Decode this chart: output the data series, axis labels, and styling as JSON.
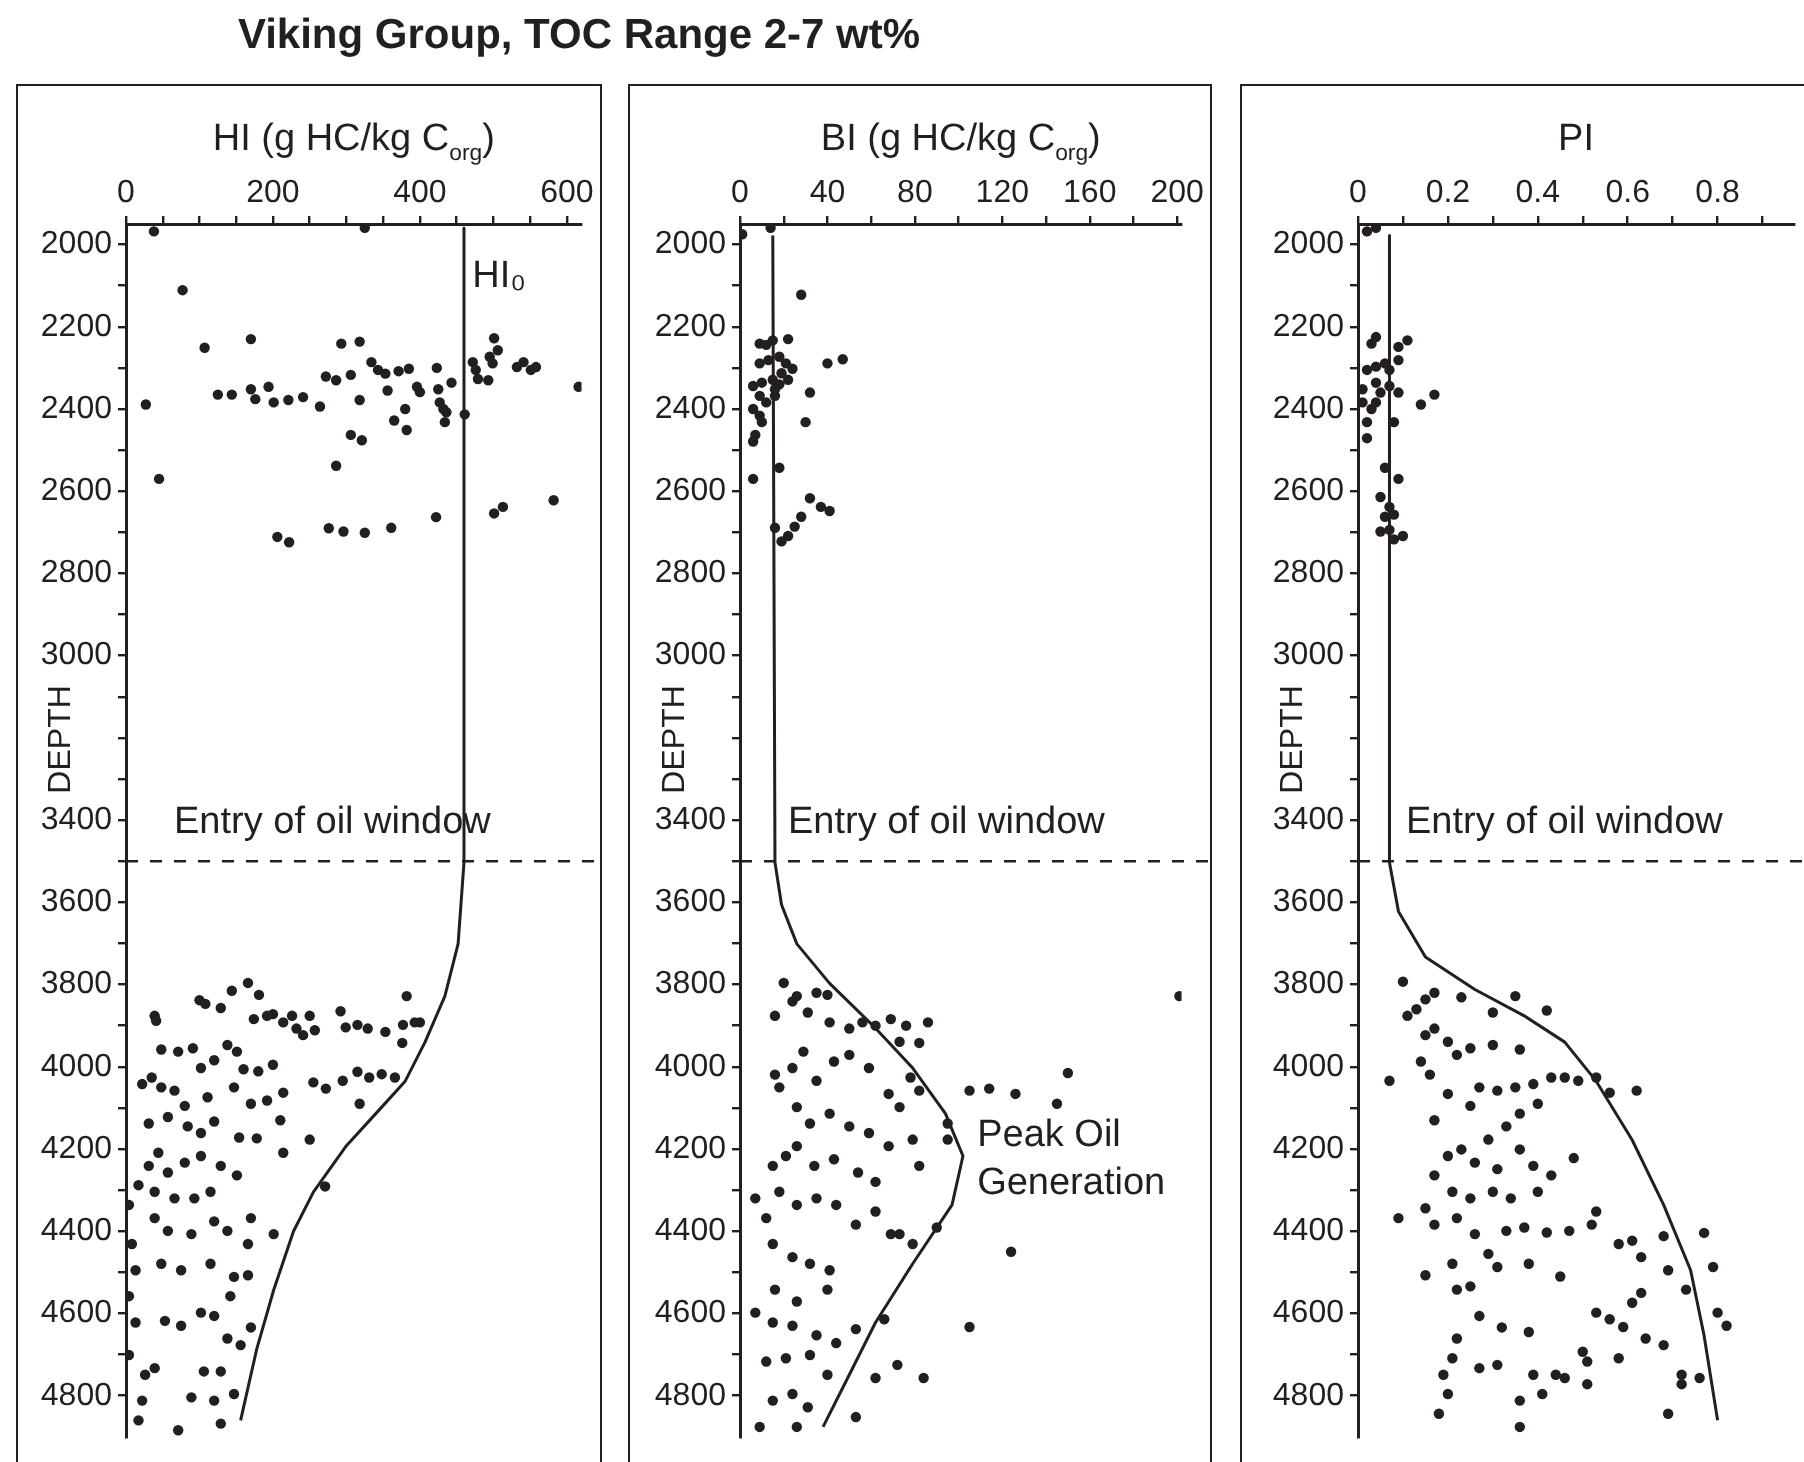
{
  "chart_data": [
    {
      "type": "scatter",
      "title": "Viking Group, TOC Range 2-7 wt%",
      "xlabel": "HI (g HC/kg C$_{org}$)",
      "ylabel": "DEPTH",
      "xlim": [
        0,
        620
      ],
      "ylim": [
        4900,
        1950
      ],
      "grid": false,
      "legend": false,
      "xticks": [
        0,
        {
          "value": 50,
          "label": null
        },
        {
          "value": 100,
          "label": null
        },
        {
          "value": 150,
          "label": null
        },
        200,
        {
          "value": 250,
          "label": null
        },
        {
          "value": 300,
          "label": null
        },
        {
          "value": 350,
          "label": null
        },
        400,
        {
          "value": 450,
          "label": null
        },
        {
          "value": 500,
          "label": null
        },
        {
          "value": 550,
          "label": null
        },
        600
      ],
      "yticks": [
        2000,
        {
          "value": 2100,
          "label": null
        },
        2200,
        {
          "value": 2300,
          "label": null
        },
        2400,
        {
          "value": 2500,
          "label": null
        },
        2600,
        {
          "value": 2700,
          "label": null
        },
        2800,
        {
          "value": 2900,
          "label": null
        },
        3000,
        {
          "value": 3100,
          "label": null
        },
        {
          "value": 3200,
          "label": null
        },
        {
          "value": 3300,
          "label": null
        },
        3400,
        {
          "value": 3500,
          "label": null
        },
        3600,
        {
          "value": 3700,
          "label": null
        },
        3800,
        {
          "value": 3900,
          "label": null
        },
        4000,
        {
          "value": 4100,
          "label": null
        },
        4200,
        {
          "value": 4300,
          "label": null
        },
        4400,
        {
          "value": 4500,
          "label": null
        },
        4600,
        {
          "value": 4700,
          "label": null
        },
        4800
      ],
      "ref_lines": [
        {
          "axis": "y",
          "value": 3500,
          "label": "Entry of oil window",
          "color": "#231f20",
          "line_style": "dashed"
        }
      ],
      "annotations": [
        {
          "text": "HI₀",
          "x": 455,
          "y": 2070
        }
      ],
      "series": [
        {
          "type": "scatter",
          "marker": "circle",
          "color": "#231f20",
          "x": [
            38,
            325,
            77,
            107,
            170,
            293,
            318,
            27,
            125,
            144,
            170,
            176,
            194,
            201,
            221,
            241,
            264,
            272,
            286,
            306,
            318,
            334,
            343,
            353,
            371,
            356,
            385,
            396,
            400,
            380,
            365,
            382,
            423,
            425,
            427,
            432,
            436,
            443,
            434,
            461,
            472,
            476,
            479,
            501,
            506,
            499,
            495,
            493,
            532,
            541,
            551,
            558,
            616,
            45,
            286,
            306,
            321,
            206,
            222,
            276,
            296,
            325,
            361,
            422,
            501,
            513,
            582,
            39,
            41,
            100,
            108,
            129,
            144,
            166,
            181,
            174,
            192,
            200,
            214,
            226,
            232,
            241,
            250,
            257,
            292,
            299,
            315,
            329,
            353,
            377,
            382,
            393,
            400,
            376,
            48,
            71,
            91,
            102,
            120,
            138,
            151,
            160,
            180,
            200,
            22,
            35,
            48,
            66,
            80,
            111,
            147,
            170,
            192,
            214,
            255,
            272,
            295,
            315,
            331,
            348,
            366,
            318,
            210,
            154,
            178,
            214,
            250,
            271,
            31,
            57,
            84,
            102,
            120,
            44,
            31,
            57,
            80,
            102,
            129,
            151,
            17,
            39,
            66,
            93,
            115,
            39,
            57,
            89,
            120,
            138,
            170,
            166,
            201,
            4,
            8,
            13,
            4,
            13,
            48,
            75,
            115,
            147,
            166,
            142,
            102,
            53,
            75,
            120,
            170,
            138,
            156,
            39,
            26,
            129,
            106,
            89,
            120,
            147,
            22,
            17,
            71,
            129,
            4
          ],
          "values": [
            1968,
            1959,
            2111,
            2251,
            2230,
            2241,
            2236,
            2389,
            2365,
            2365,
            2352,
            2376,
            2346,
            2384,
            2378,
            2371,
            2394,
            2321,
            2330,
            2317,
            2378,
            2286,
            2305,
            2314,
            2308,
            2355,
            2302,
            2346,
            2359,
            2400,
            2428,
            2451,
            2300,
            2352,
            2384,
            2400,
            2408,
            2336,
            2432,
            2413,
            2286,
            2305,
            2327,
            2228,
            2257,
            2289,
            2273,
            2330,
            2298,
            2286,
            2305,
            2298,
            2346,
            2570,
            2538,
            2463,
            2476,
            2711,
            2724,
            2690,
            2698,
            2701,
            2689,
            2663,
            2654,
            2638,
            2622,
            3876,
            3888,
            3838,
            3847,
            3857,
            3815,
            3796,
            3825,
            3884,
            3876,
            3872,
            3892,
            3876,
            3907,
            3923,
            3876,
            3911,
            3865,
            3904,
            3898,
            3907,
            3915,
            3898,
            3828,
            3892,
            3892,
            3942,
            3958,
            3963,
            3955,
            4003,
            3984,
            3947,
            3963,
            4006,
            4011,
            3995,
            4042,
            4026,
            4050,
            4058,
            4095,
            4074,
            4050,
            4090,
            4082,
            4063,
            4038,
            4053,
            4034,
            4012,
            4026,
            4018,
            4026,
            4090,
            4130,
            4172,
            4174,
            4209,
            4177,
            4291,
            4138,
            4122,
            4145,
            4161,
            4133,
            4209,
            4241,
            4257,
            4233,
            4217,
            4241,
            4264,
            4288,
            4304,
            4320,
            4320,
            4304,
            4368,
            4399,
            4407,
            4376,
            4399,
            4368,
            4431,
            4407,
            4336,
            4431,
            4495,
            4558,
            4622,
            4479,
            4495,
            4479,
            4511,
            4507,
            4558,
            4598,
            4618,
            4630,
            4606,
            4634,
            4661,
            4677,
            4733,
            4749,
            4741,
            4741,
            4804,
            4812,
            4796,
            4812,
            4860,
            4884,
            4868,
            4701
          ]
        },
        {
          "type": "line",
          "marker": "none",
          "color": "#231f20",
          "x": [
            460,
            460,
            452,
            434,
            407,
            380,
            344,
            300,
            255,
            228,
            201,
            178,
            156
          ],
          "values": [
            1960,
            3503,
            3701,
            3828,
            3940,
            4035,
            4106,
            4192,
            4305,
            4400,
            4543,
            4686,
            4860
          ]
        }
      ]
    },
    {
      "type": "scatter",
      "xlabel": "BI (g HC/kg C$_{org}$)",
      "ylabel": "DEPTH",
      "xlim": [
        0,
        202
      ],
      "ylim": [
        4900,
        1950
      ],
      "grid": false,
      "legend": false,
      "xticks": [
        0,
        {
          "value": 20,
          "label": null
        },
        40,
        {
          "value": 60,
          "label": null
        },
        80,
        {
          "value": 100,
          "label": null
        },
        120,
        {
          "value": 140,
          "label": null
        },
        160,
        {
          "value": 180,
          "label": null
        },
        200
      ],
      "yticks": [
        2000,
        {
          "value": 2100,
          "label": null
        },
        2200,
        {
          "value": 2300,
          "label": null
        },
        2400,
        {
          "value": 2500,
          "label": null
        },
        2600,
        {
          "value": 2700,
          "label": null
        },
        2800,
        {
          "value": 2900,
          "label": null
        },
        3000,
        {
          "value": 3100,
          "label": null
        },
        {
          "value": 3200,
          "label": null
        },
        {
          "value": 3300,
          "label": null
        },
        3400,
        {
          "value": 3500,
          "label": null
        },
        3600,
        {
          "value": 3700,
          "label": null
        },
        3800,
        {
          "value": 3900,
          "label": null
        },
        4000,
        {
          "value": 4100,
          "label": null
        },
        4200,
        {
          "value": 4300,
          "label": null
        },
        4400,
        {
          "value": 4500,
          "label": null
        },
        4600,
        {
          "value": 4700,
          "label": null
        },
        4800
      ],
      "ref_lines": [
        {
          "axis": "y",
          "value": 3500,
          "label": "Entry of oil window",
          "color": "#231f20",
          "line_style": "dashed"
        }
      ],
      "annotations": [
        {
          "text": "Peak Oil Generation",
          "x": 103,
          "y": 4217
        }
      ],
      "series": [
        {
          "type": "scatter",
          "marker": "circle",
          "color": "#231f20",
          "x": [
            1,
            14,
            28,
            9,
            12,
            15,
            22,
            9,
            13,
            18,
            21,
            24,
            19,
            15,
            10,
            6,
            9,
            12,
            16,
            18,
            22,
            6,
            9,
            10,
            7,
            6,
            16,
            32,
            30,
            40,
            47,
            6,
            18,
            32,
            37,
            41,
            28,
            25,
            16,
            22,
            19,
            201,
            20,
            16,
            24,
            26,
            35,
            40,
            31,
            41,
            50,
            56,
            62,
            69,
            73,
            82,
            86,
            76,
            16,
            24,
            29,
            35,
            43,
            50,
            59,
            68,
            73,
            78,
            82,
            105,
            114,
            126,
            145,
            150,
            95,
            95,
            79,
            82,
            18,
            26,
            32,
            41,
            50,
            59,
            68,
            15,
            21,
            26,
            34,
            43,
            54,
            62,
            7,
            12,
            18,
            26,
            35,
            44,
            53,
            62,
            69,
            73,
            79,
            90,
            124,
            15,
            24,
            32,
            41,
            16,
            26,
            40,
            7,
            15,
            24,
            35,
            44,
            53,
            66,
            105,
            12,
            21,
            32,
            40,
            62,
            72,
            84,
            15,
            24,
            31,
            53,
            9,
            26
          ],
          "values": [
            1975,
            1959,
            2122,
            2241,
            2244,
            2233,
            2230,
            2289,
            2281,
            2273,
            2289,
            2302,
            2313,
            2329,
            2336,
            2344,
            2368,
            2384,
            2352,
            2340,
            2329,
            2400,
            2416,
            2432,
            2463,
            2479,
            2368,
            2360,
            2432,
            2289,
            2279,
            2570,
            2543,
            2617,
            2638,
            2648,
            2662,
            2686,
            2689,
            2709,
            2722,
            3828,
            3796,
            3876,
            3841,
            3828,
            3820,
            3825,
            3868,
            3892,
            3907,
            3892,
            3900,
            3884,
            3939,
            3942,
            3892,
            3900,
            4019,
            4003,
            3963,
            4034,
            3987,
            3971,
            4003,
            4066,
            4098,
            4026,
            4058,
            4058,
            4053,
            4066,
            4090,
            4015,
            4138,
            4177,
            4177,
            4241,
            4050,
            4098,
            4138,
            4114,
            4145,
            4161,
            4193,
            4241,
            4217,
            4193,
            4241,
            4225,
            4257,
            4280,
            4320,
            4368,
            4304,
            4336,
            4320,
            4336,
            4384,
            4352,
            4407,
            4407,
            4431,
            4391,
            4450,
            4431,
            4463,
            4479,
            4495,
            4542,
            4571,
            4542,
            4598,
            4622,
            4630,
            4653,
            4672,
            4638,
            4614,
            4633,
            4717,
            4709,
            4701,
            4749,
            4757,
            4725,
            4757,
            4812,
            4796,
            4828,
            4852,
            4876,
            4876
          ]
        },
        {
          "type": "line",
          "marker": "none",
          "color": "#231f20",
          "x": [
            15,
            16,
            19,
            26,
            41,
            62,
            79,
            94,
            102,
            97,
            79,
            62,
            50,
            38
          ],
          "values": [
            1978,
            3503,
            3606,
            3701,
            3797,
            3906,
            4003,
            4114,
            4217,
            4336,
            4479,
            4622,
            4749,
            4876
          ]
        }
      ]
    },
    {
      "type": "scatter",
      "xlabel": "PI",
      "ylabel": "DEPTH",
      "xlim": [
        0,
        0.97
      ],
      "ylim": [
        4900,
        1950
      ],
      "grid": false,
      "legend": false,
      "xticks": [
        0,
        {
          "value": 0.1,
          "label": null
        },
        0.2,
        {
          "value": 0.3,
          "label": null
        },
        0.4,
        {
          "value": 0.5,
          "label": null
        },
        0.6,
        {
          "value": 0.7,
          "label": null
        },
        0.8,
        {
          "value": 0.9,
          "label": null
        }
      ],
      "yticks": [
        2000,
        {
          "value": 2100,
          "label": null
        },
        2200,
        {
          "value": 2300,
          "label": null
        },
        2400,
        {
          "value": 2500,
          "label": null
        },
        2600,
        {
          "value": 2700,
          "label": null
        },
        2800,
        {
          "value": 2900,
          "label": null
        },
        3000,
        {
          "value": 3100,
          "label": null
        },
        {
          "value": 3200,
          "label": null
        },
        {
          "value": 3300,
          "label": null
        },
        3400,
        {
          "value": 3500,
          "label": null
        },
        3600,
        {
          "value": 3700,
          "label": null
        },
        3800,
        {
          "value": 3900,
          "label": null
        },
        4000,
        {
          "value": 4100,
          "label": null
        },
        4200,
        {
          "value": 4300,
          "label": null
        },
        4400,
        {
          "value": 4500,
          "label": null
        },
        4600,
        {
          "value": 4700,
          "label": null
        },
        4800
      ],
      "ref_lines": [
        {
          "axis": "y",
          "value": 3500,
          "label": "Entry of oil window",
          "color": "#231f20",
          "line_style": "dashed"
        }
      ],
      "series": [
        {
          "type": "scatter",
          "marker": "circle",
          "color": "#231f20",
          "x": [
            0.02,
            0.04,
            0.03,
            0.04,
            0.11,
            0.09,
            0.09,
            0.02,
            0.04,
            0.06,
            0.07,
            0.01,
            0.04,
            0.05,
            0.07,
            0.09,
            0.14,
            0.17,
            0.01,
            0.03,
            0.04,
            0.02,
            0.02,
            0.08,
            0.06,
            0.09,
            0.05,
            0.07,
            0.08,
            0.06,
            0.05,
            0.07,
            0.08,
            0.1,
            0.1,
            0.11,
            0.13,
            0.15,
            0.17,
            0.23,
            0.3,
            0.35,
            0.42,
            0.07,
            0.14,
            0.15,
            0.17,
            0.2,
            0.22,
            0.25,
            0.3,
            0.36,
            0.16,
            0.2,
            0.25,
            0.27,
            0.31,
            0.35,
            0.39,
            0.43,
            0.46,
            0.49,
            0.53,
            0.56,
            0.62,
            0.4,
            0.36,
            0.33,
            0.29,
            0.17,
            0.2,
            0.23,
            0.26,
            0.31,
            0.36,
            0.39,
            0.43,
            0.48,
            0.17,
            0.21,
            0.25,
            0.3,
            0.34,
            0.4,
            0.09,
            0.15,
            0.17,
            0.22,
            0.26,
            0.33,
            0.37,
            0.42,
            0.47,
            0.52,
            0.53,
            0.58,
            0.61,
            0.63,
            0.68,
            0.69,
            0.77,
            0.79,
            0.15,
            0.21,
            0.29,
            0.31,
            0.38,
            0.45,
            0.22,
            0.25,
            0.63,
            0.61,
            0.73,
            0.8,
            0.82,
            0.27,
            0.32,
            0.38,
            0.53,
            0.56,
            0.59,
            0.64,
            0.68,
            0.22,
            0.21,
            0.27,
            0.31,
            0.5,
            0.51,
            0.58,
            0.72,
            0.76,
            0.72,
            0.19,
            0.2,
            0.18,
            0.36,
            0.39,
            0.44,
            0.41,
            0.46,
            0.69,
            0.51,
            0.36
          ],
          "values": [
            1968,
            1959,
            2241,
            2225,
            2233,
            2249,
            2281,
            2305,
            2297,
            2289,
            2305,
            2352,
            2336,
            2360,
            2344,
            2360,
            2389,
            2365,
            2384,
            2400,
            2384,
            2432,
            2471,
            2432,
            2543,
            2570,
            2614,
            2638,
            2657,
            2662,
            2698,
            2694,
            2717,
            2709,
            3793,
            3876,
            3860,
            3836,
            3820,
            3831,
            3868,
            3828,
            3863,
            4034,
            3987,
            3923,
            3907,
            3939,
            3971,
            3955,
            3947,
            3958,
            4019,
            4066,
            4095,
            4050,
            4058,
            4050,
            4042,
            4026,
            4026,
            4034,
            4026,
            4063,
            4058,
            4090,
            4114,
            4145,
            4177,
            4130,
            4217,
            4201,
            4233,
            4249,
            4201,
            4241,
            4264,
            4222,
            4264,
            4304,
            4320,
            4304,
            4320,
            4304,
            4368,
            4344,
            4384,
            4368,
            4407,
            4399,
            4391,
            4403,
            4399,
            4384,
            4352,
            4431,
            4423,
            4463,
            4412,
            4495,
            4404,
            4487,
            4507,
            4479,
            4455,
            4487,
            4479,
            4510,
            4542,
            4534,
            4550,
            4574,
            4542,
            4598,
            4630,
            4606,
            4634,
            4645,
            4598,
            4614,
            4633,
            4661,
            4677,
            4661,
            4709,
            4733,
            4725,
            4693,
            4717,
            4709,
            4749,
            4757,
            4772,
            4749,
            4796,
            4844,
            4812,
            4749,
            4749,
            4796,
            4757,
            4844,
            4772,
            4876
          ]
        },
        {
          "type": "line",
          "marker": "none",
          "color": "#231f20",
          "x": [
            0.07,
            0.07,
            0.09,
            0.15,
            0.26,
            0.37,
            0.46,
            0.53,
            0.61,
            0.68,
            0.74,
            0.77,
            0.8
          ],
          "values": [
            1978,
            3503,
            3622,
            3733,
            3812,
            3876,
            3940,
            4035,
            4178,
            4336,
            4495,
            4654,
            4860
          ]
        }
      ]
    }
  ]
}
